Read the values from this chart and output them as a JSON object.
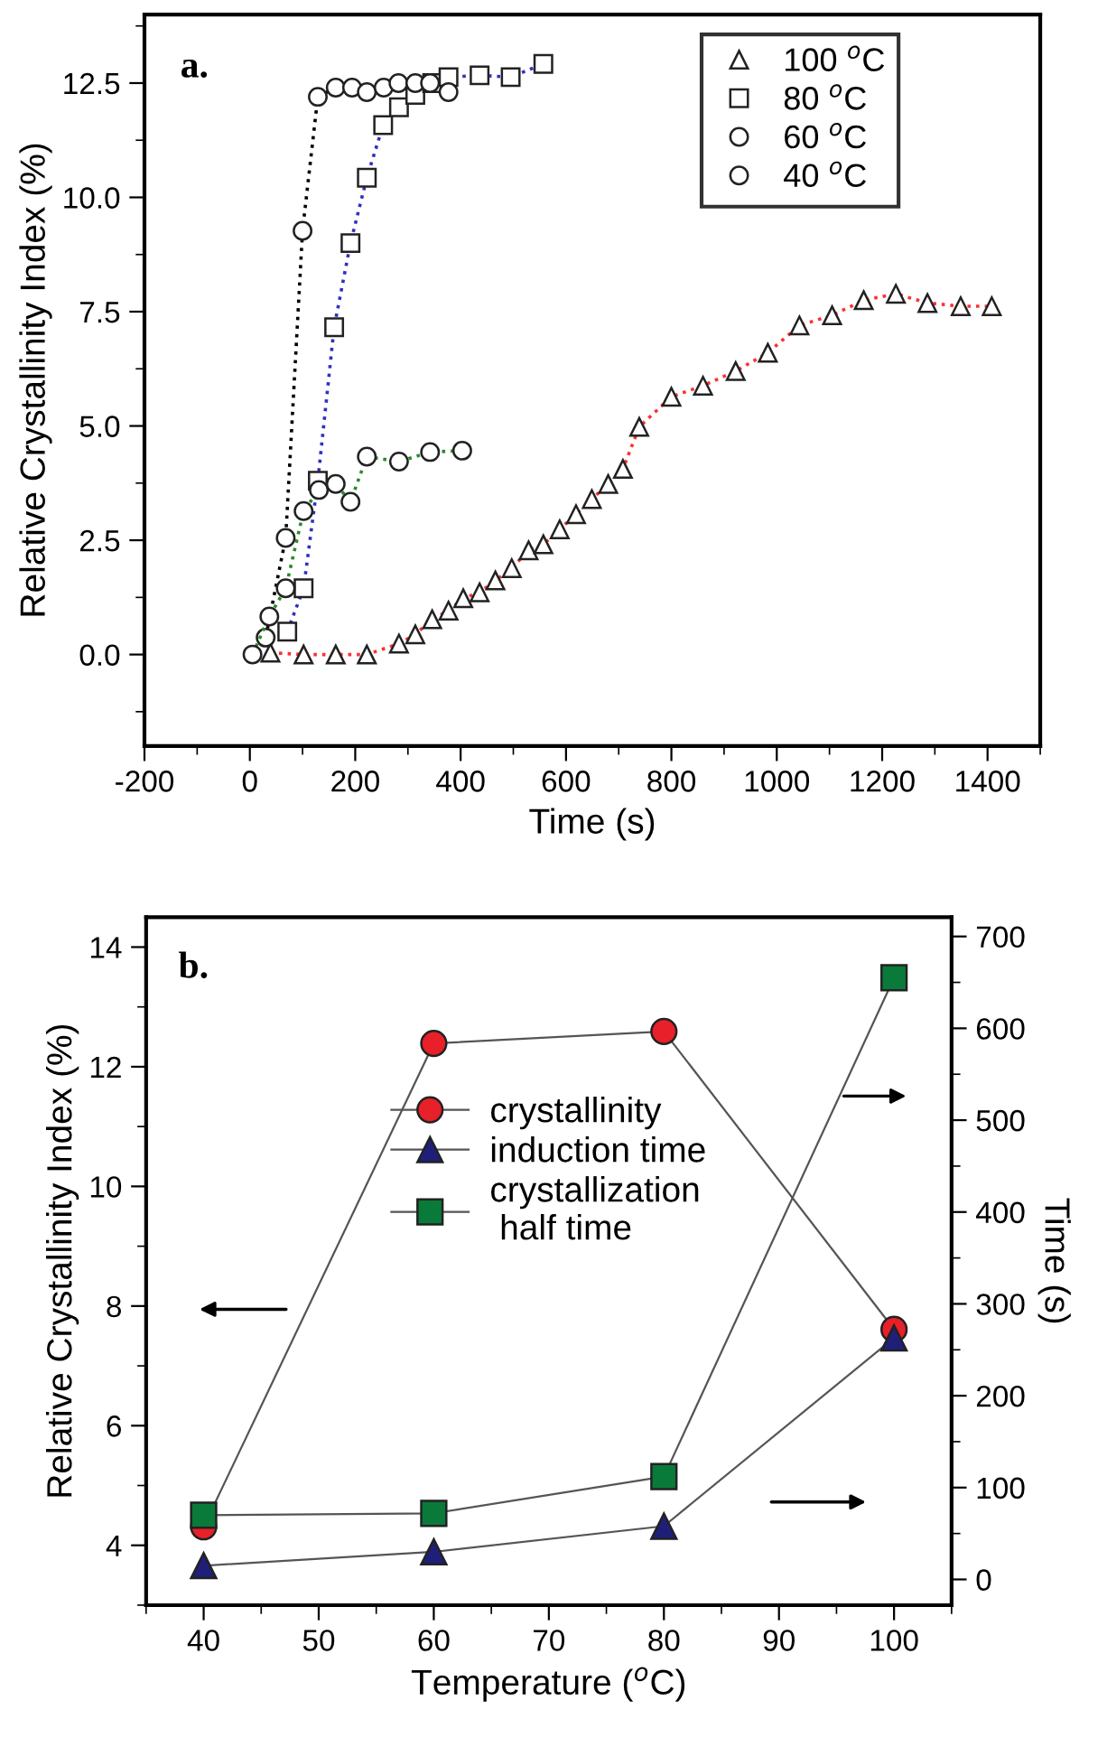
{
  "chart_data": [
    {
      "type": "line",
      "xlabel": "Time (s)",
      "ylabel": "Relative Crystallinity Index (%)",
      "annotations": [
        "a."
      ],
      "xlim": [
        -200,
        1500
      ],
      "xticks": [
        -200,
        0,
        200,
        400,
        600,
        800,
        1000,
        1200,
        1400
      ],
      "ylim": [
        -2,
        14
      ],
      "yticks": [
        {
          "value": 0,
          "label": "0.0"
        },
        {
          "value": 2.5,
          "label": "2.5"
        },
        {
          "value": 5,
          "label": "5.0"
        },
        {
          "value": 7.5,
          "label": "7.5"
        },
        {
          "value": 10,
          "label": "10.0"
        },
        {
          "value": 12.5,
          "label": "12.5"
        }
      ],
      "grid": false,
      "legend": "top right",
      "line_style": "dotted",
      "series": [
        {
          "name": "100 $^{o}$C",
          "color": "#ff3030",
          "marker": "triangle",
          "x": [
            39,
            102,
            163,
            222,
            283,
            314,
            346,
            377,
            405,
            436,
            466,
            497,
            529,
            557,
            588,
            619,
            649,
            680,
            708,
            739,
            800,
            860,
            922,
            983,
            1043,
            1105,
            1165,
            1226,
            1286,
            1349,
            1408
          ],
          "values": [
            0.04,
            0.0,
            0.0,
            0.0,
            0.24,
            0.44,
            0.77,
            0.96,
            1.23,
            1.36,
            1.62,
            1.89,
            2.28,
            2.41,
            2.74,
            3.07,
            3.4,
            3.73,
            4.06,
            4.98,
            5.64,
            5.88,
            6.2,
            6.6,
            7.2,
            7.42,
            7.75,
            7.89,
            7.69,
            7.62,
            7.62
          ]
        },
        {
          "name": "80 $^{o}$C",
          "color": "#3030c0",
          "marker": "square",
          "x": [
            71,
            102,
            129,
            160,
            191,
            222,
            253,
            283,
            314,
            346,
            377,
            436,
            495,
            557
          ],
          "values": [
            0.5,
            1.45,
            3.8,
            7.16,
            9.0,
            10.43,
            11.58,
            11.97,
            12.24,
            12.5,
            12.63,
            12.67,
            12.63,
            12.92
          ]
        },
        {
          "name": "60 $^{o}$C",
          "color": "#000000",
          "marker": "circle",
          "x": [
            30,
            68,
            100,
            129,
            163,
            194,
            222,
            254,
            282,
            314,
            342,
            377
          ],
          "values": [
            0.37,
            2.55,
            9.27,
            12.2,
            12.4,
            12.4,
            12.3,
            12.4,
            12.5,
            12.5,
            12.5,
            12.3
          ]
        },
        {
          "name": "40 $^{o}$C",
          "color": "#2a8a2a",
          "marker": "circle",
          "x": [
            5,
            37,
            68,
            102,
            131,
            163,
            191,
            222,
            283,
            342,
            403
          ],
          "values": [
            0.0,
            0.83,
            1.45,
            3.14,
            3.6,
            3.73,
            3.34,
            4.33,
            4.22,
            4.43,
            4.46
          ]
        }
      ]
    },
    {
      "type": "line",
      "xlabel": "Temperature ($^{o}$C)",
      "ylabel": "Relative Crystallinity Index (%)",
      "y2label": "Time (s)",
      "annotations": [
        "b."
      ],
      "x": [
        40,
        60,
        80,
        100
      ],
      "xlim": [
        35,
        105
      ],
      "xticks": [
        40,
        50,
        60,
        70,
        80,
        90,
        100
      ],
      "ylim": [
        3,
        14.5
      ],
      "yticks": [
        4,
        6,
        8,
        10,
        12,
        14
      ],
      "y2lim": [
        -28,
        721
      ],
      "y2ticks": [
        0,
        100,
        200,
        300,
        400,
        500,
        600,
        700
      ],
      "grid": false,
      "legend": "center",
      "line_style": "solid",
      "series": [
        {
          "name": "crystallinity",
          "color": "#e8202a",
          "marker": "circle",
          "values": [
            4.31,
            12.39,
            12.59,
            7.61
          ]
        },
        {
          "name": "induction time",
          "color": "#1f1f7a",
          "marker": "triangle",
          "axis": "y2",
          "values": [
            15,
            30,
            58,
            263
          ]
        },
        {
          "name": "crystallization\n half time",
          "color": "#0a7a3a",
          "marker": "square",
          "axis": "y2",
          "values": [
            70,
            72,
            112,
            655
          ]
        }
      ]
    }
  ]
}
